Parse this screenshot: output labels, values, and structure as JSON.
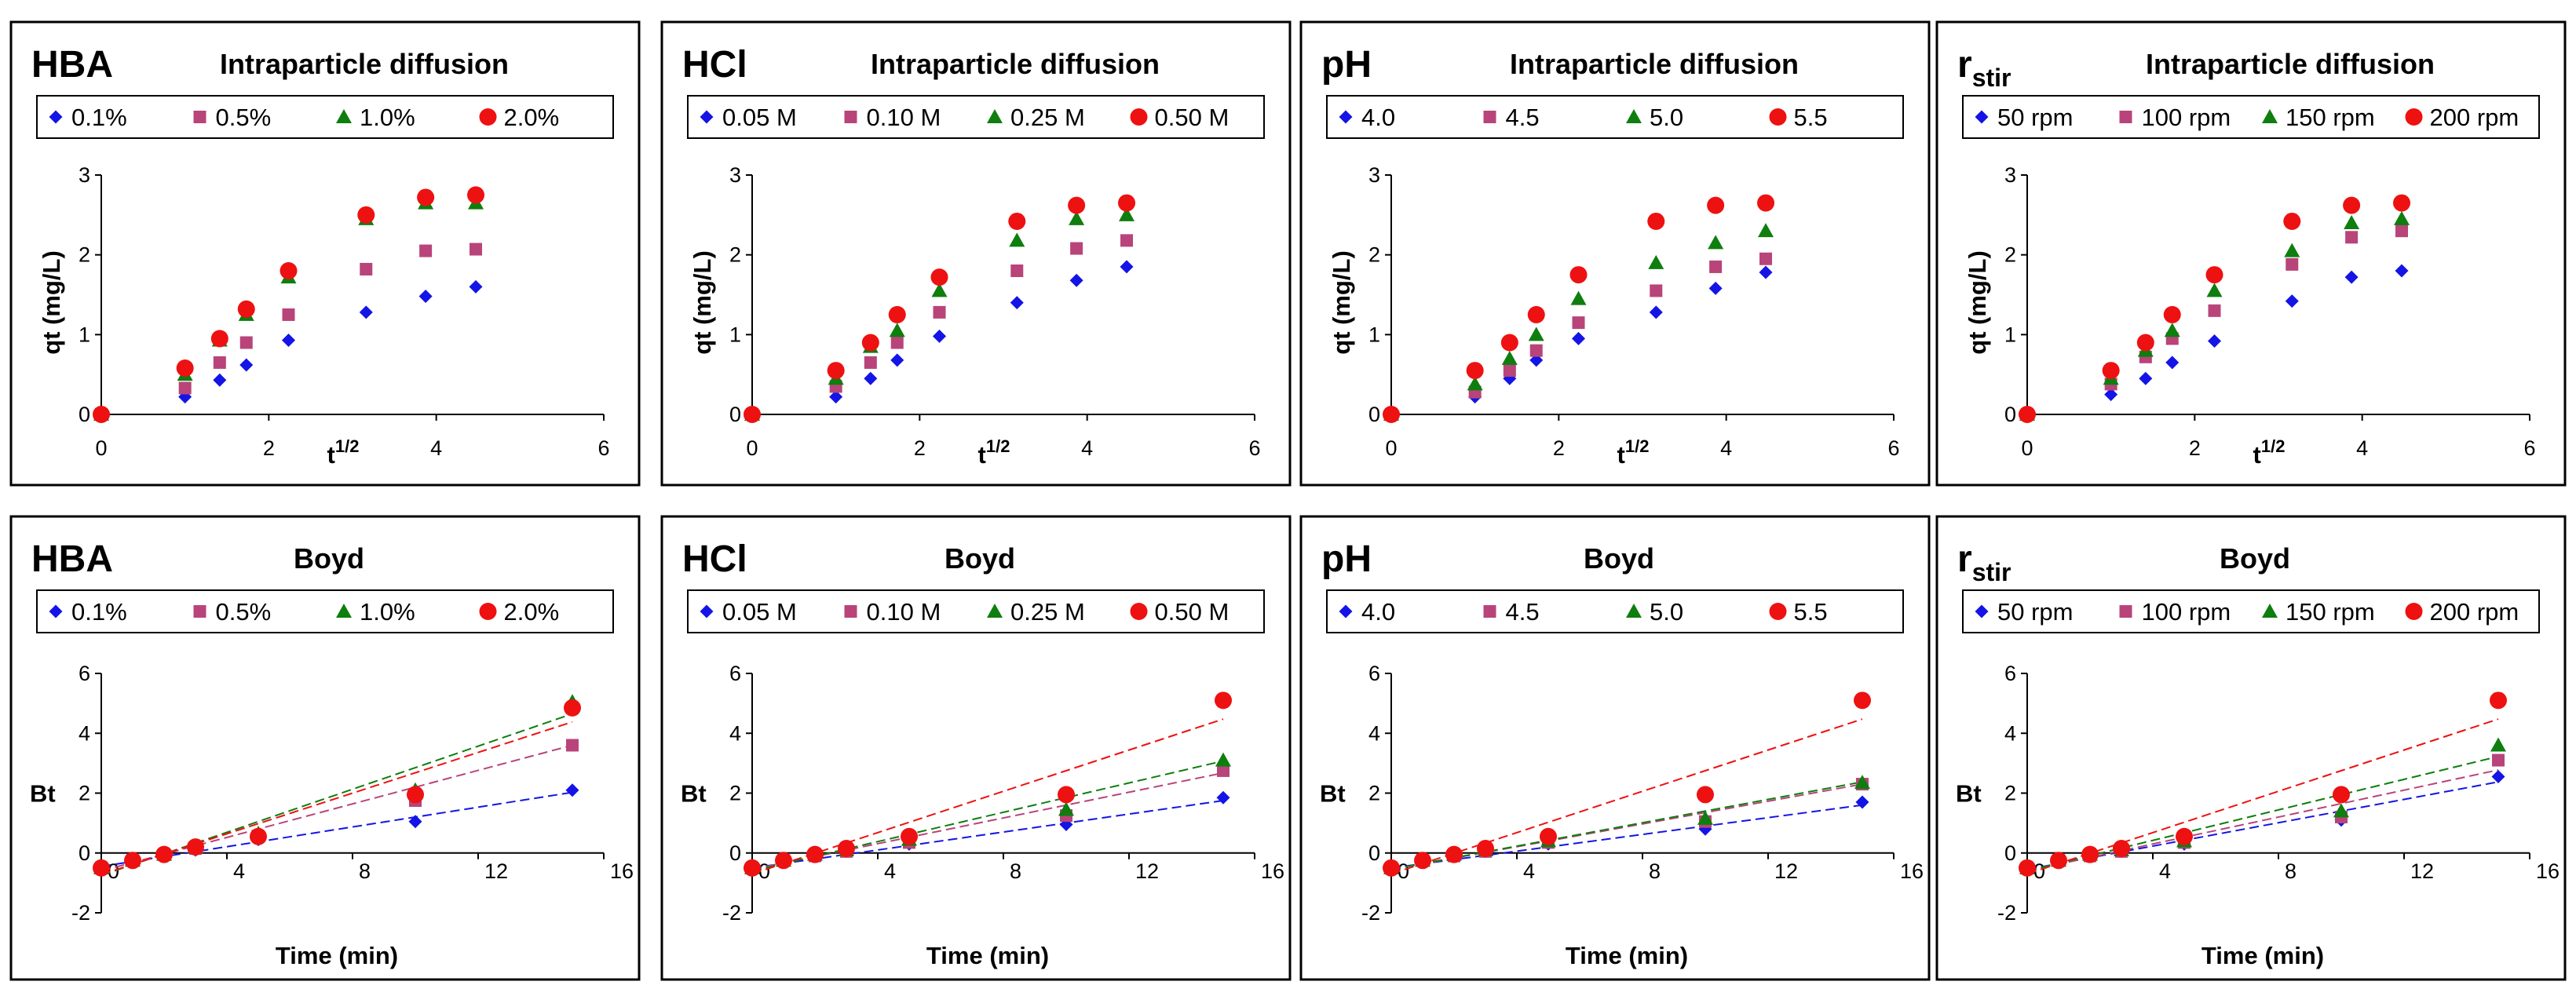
{
  "figure": {
    "colors": {
      "blue": "#1414e6",
      "magenta": "#b8447a",
      "green": "#0e7e0e",
      "red": "#ee1111"
    }
  },
  "chart_data": [
    {
      "type": "scatter",
      "row": "intraparticle",
      "id": "hba-intra",
      "panel_label": "HBA",
      "panel_label_sub": "",
      "title": "Intraparticle diffusion",
      "xlabel": "t",
      "xlabel_sup": "1/2",
      "ylabel": "qt (mg/L)",
      "xlim": [
        0,
        6
      ],
      "ylim": [
        0,
        3
      ],
      "xticks": [
        0,
        2,
        4,
        6
      ],
      "yticks": [
        0,
        1,
        2,
        3
      ],
      "x": [
        0,
        1.0,
        1.414,
        1.732,
        2.236,
        3.162,
        3.873,
        4.472
      ],
      "series": [
        {
          "name": "0.1%",
          "marker": "diamond",
          "color": "#1414e6",
          "values": [
            0,
            0.22,
            0.43,
            0.62,
            0.93,
            1.28,
            1.48,
            1.6
          ]
        },
        {
          "name": "0.5%",
          "marker": "square",
          "color": "#b8447a",
          "values": [
            0,
            0.33,
            0.65,
            0.9,
            1.25,
            1.82,
            2.05,
            2.07
          ]
        },
        {
          "name": "1.0%",
          "marker": "triangle",
          "color": "#0e7e0e",
          "values": [
            0,
            0.5,
            0.93,
            1.25,
            1.72,
            2.45,
            2.65,
            2.65
          ]
        },
        {
          "name": "2.0%",
          "marker": "circle",
          "color": "#ee1111",
          "values": [
            0,
            0.58,
            0.95,
            1.32,
            1.8,
            2.5,
            2.72,
            2.75
          ]
        }
      ]
    },
    {
      "type": "scatter",
      "row": "intraparticle",
      "id": "hcl-intra",
      "panel_label": "HCl",
      "panel_label_sub": "",
      "title": "Intraparticle diffusion",
      "xlabel": "t",
      "xlabel_sup": "1/2",
      "ylabel": "qt (mg/L)",
      "xlim": [
        0,
        6
      ],
      "ylim": [
        0,
        3
      ],
      "xticks": [
        0,
        2,
        4,
        6
      ],
      "yticks": [
        0,
        1,
        2,
        3
      ],
      "x": [
        0,
        1.0,
        1.414,
        1.732,
        2.236,
        3.162,
        3.873,
        4.472
      ],
      "series": [
        {
          "name": "0.05 M",
          "marker": "diamond",
          "color": "#1414e6",
          "values": [
            0,
            0.22,
            0.45,
            0.68,
            0.98,
            1.4,
            1.68,
            1.85
          ]
        },
        {
          "name": "0.10 M",
          "marker": "square",
          "color": "#b8447a",
          "values": [
            0,
            0.35,
            0.65,
            0.9,
            1.28,
            1.8,
            2.08,
            2.18
          ]
        },
        {
          "name": "0.25 M",
          "marker": "triangle",
          "color": "#0e7e0e",
          "values": [
            0,
            0.45,
            0.85,
            1.05,
            1.55,
            2.18,
            2.45,
            2.5
          ]
        },
        {
          "name": "0.50 M",
          "marker": "circle",
          "color": "#ee1111",
          "values": [
            0,
            0.55,
            0.9,
            1.25,
            1.72,
            2.42,
            2.62,
            2.65
          ]
        }
      ]
    },
    {
      "type": "scatter",
      "row": "intraparticle",
      "id": "ph-intra",
      "panel_label": "pH",
      "panel_label_sub": "",
      "title": "Intraparticle diffusion",
      "xlabel": "t",
      "xlabel_sup": "1/2",
      "ylabel": "qt (mg/L)",
      "xlim": [
        0,
        6
      ],
      "ylim": [
        0,
        3
      ],
      "xticks": [
        0,
        2,
        4,
        6
      ],
      "yticks": [
        0,
        1,
        2,
        3
      ],
      "x": [
        0,
        1.0,
        1.414,
        1.732,
        2.236,
        3.162,
        3.873,
        4.472
      ],
      "series": [
        {
          "name": "4.0",
          "marker": "diamond",
          "color": "#1414e6",
          "values": [
            0,
            0.22,
            0.45,
            0.68,
            0.95,
            1.28,
            1.58,
            1.78
          ]
        },
        {
          "name": "4.5",
          "marker": "square",
          "color": "#b8447a",
          "values": [
            0,
            0.28,
            0.55,
            0.8,
            1.15,
            1.55,
            1.85,
            1.95
          ]
        },
        {
          "name": "5.0",
          "marker": "triangle",
          "color": "#0e7e0e",
          "values": [
            0,
            0.38,
            0.7,
            1.0,
            1.45,
            1.9,
            2.15,
            2.3
          ]
        },
        {
          "name": "5.5",
          "marker": "circle",
          "color": "#ee1111",
          "values": [
            0,
            0.55,
            0.9,
            1.25,
            1.75,
            2.42,
            2.62,
            2.65
          ]
        }
      ]
    },
    {
      "type": "scatter",
      "row": "intraparticle",
      "id": "rstir-intra",
      "panel_label": "r",
      "panel_label_sub": "stir",
      "title": "Intraparticle diffusion",
      "xlabel": "t",
      "xlabel_sup": "1/2",
      "ylabel": "qt (mg/L)",
      "xlim": [
        0,
        6
      ],
      "ylim": [
        0,
        3
      ],
      "xticks": [
        0,
        2,
        4,
        6
      ],
      "yticks": [
        0,
        1,
        2,
        3
      ],
      "x": [
        0,
        1.0,
        1.414,
        1.732,
        2.236,
        3.162,
        3.873,
        4.472
      ],
      "series": [
        {
          "name": "50 rpm",
          "marker": "diamond",
          "color": "#1414e6",
          "values": [
            0,
            0.25,
            0.45,
            0.65,
            0.92,
            1.42,
            1.72,
            1.8
          ]
        },
        {
          "name": "100 rpm",
          "marker": "square",
          "color": "#b8447a",
          "values": [
            0,
            0.38,
            0.72,
            0.95,
            1.3,
            1.88,
            2.22,
            2.3
          ]
        },
        {
          "name": "150 rpm",
          "marker": "triangle",
          "color": "#0e7e0e",
          "values": [
            0,
            0.45,
            0.8,
            1.05,
            1.55,
            2.05,
            2.4,
            2.45
          ]
        },
        {
          "name": "200 rpm",
          "marker": "circle",
          "color": "#ee1111",
          "values": [
            0,
            0.55,
            0.9,
            1.25,
            1.75,
            2.42,
            2.62,
            2.65
          ]
        }
      ]
    },
    {
      "type": "scatter",
      "row": "boyd",
      "id": "hba-boyd",
      "panel_label": "HBA",
      "panel_label_sub": "",
      "title": "Boyd",
      "xlabel": "Time (min)",
      "xlabel_sup": "",
      "ylabel": "Bt",
      "xlim": [
        0,
        16
      ],
      "ylim": [
        -2,
        6
      ],
      "xticks": [
        0,
        4,
        8,
        12,
        16
      ],
      "yticks": [
        -2,
        0,
        2,
        4,
        6
      ],
      "x": [
        0,
        1,
        2,
        3,
        5,
        10,
        15
      ],
      "series": [
        {
          "name": "0.1%",
          "marker": "diamond",
          "color": "#1414e6",
          "values": [
            -0.5,
            -0.25,
            -0.1,
            0.1,
            0.45,
            1.05,
            2.1
          ],
          "fit": [
            -0.45,
            0.165
          ]
        },
        {
          "name": "0.5%",
          "marker": "square",
          "color": "#b8447a",
          "values": [
            -0.5,
            -0.25,
            -0.05,
            0.15,
            0.55,
            1.75,
            3.6
          ],
          "fit": [
            -0.6,
            0.28
          ]
        },
        {
          "name": "1.0%",
          "marker": "triangle",
          "color": "#0e7e0e",
          "values": [
            -0.5,
            -0.25,
            -0.05,
            0.2,
            0.65,
            2.1,
            5.05
          ],
          "fit": [
            -0.75,
            0.36
          ]
        },
        {
          "name": "2.0%",
          "marker": "circle",
          "color": "#ee1111",
          "values": [
            -0.5,
            -0.25,
            -0.05,
            0.2,
            0.55,
            1.95,
            4.85
          ],
          "fit": [
            -0.72,
            0.34
          ]
        }
      ]
    },
    {
      "type": "scatter",
      "row": "boyd",
      "id": "hcl-boyd",
      "panel_label": "HCl",
      "panel_label_sub": "",
      "title": "Boyd",
      "xlabel": "Time (min)",
      "xlabel_sup": "",
      "ylabel": "Bt",
      "xlim": [
        0,
        16
      ],
      "ylim": [
        -2,
        6
      ],
      "xticks": [
        0,
        4,
        8,
        12,
        16
      ],
      "yticks": [
        -2,
        0,
        2,
        4,
        6
      ],
      "x": [
        0,
        1,
        2,
        3,
        5,
        10,
        15
      ],
      "series": [
        {
          "name": "0.05 M",
          "marker": "diamond",
          "color": "#1414e6",
          "values": [
            -0.5,
            -0.25,
            -0.1,
            0.05,
            0.3,
            0.95,
            1.85
          ],
          "fit": [
            -0.5,
            0.15
          ]
        },
        {
          "name": "0.10 M",
          "marker": "square",
          "color": "#b8447a",
          "values": [
            -0.5,
            -0.25,
            -0.1,
            0.05,
            0.35,
            1.25,
            2.75
          ],
          "fit": [
            -0.55,
            0.215
          ]
        },
        {
          "name": "0.25 M",
          "marker": "triangle",
          "color": "#0e7e0e",
          "values": [
            -0.5,
            -0.25,
            -0.05,
            0.1,
            0.45,
            1.45,
            3.1
          ],
          "fit": [
            -0.6,
            0.245
          ]
        },
        {
          "name": "0.50 M",
          "marker": "circle",
          "color": "#ee1111",
          "values": [
            -0.5,
            -0.25,
            -0.05,
            0.15,
            0.55,
            1.95,
            5.1
          ],
          "fit": [
            -0.7,
            0.345
          ]
        }
      ]
    },
    {
      "type": "scatter",
      "row": "boyd",
      "id": "ph-boyd",
      "panel_label": "pH",
      "panel_label_sub": "",
      "title": "Boyd",
      "xlabel": "Time (min)",
      "xlabel_sup": "",
      "ylabel": "Bt",
      "xlim": [
        0,
        16
      ],
      "ylim": [
        -2,
        6
      ],
      "xticks": [
        0,
        4,
        8,
        12,
        16
      ],
      "yticks": [
        -2,
        0,
        2,
        4,
        6
      ],
      "x": [
        0,
        1,
        2,
        3,
        5,
        10,
        15
      ],
      "series": [
        {
          "name": "4.0",
          "marker": "diamond",
          "color": "#1414e6",
          "values": [
            -0.5,
            -0.25,
            -0.1,
            0.05,
            0.3,
            0.8,
            1.7
          ],
          "fit": [
            -0.5,
            0.14
          ]
        },
        {
          "name": "4.5",
          "marker": "square",
          "color": "#b8447a",
          "values": [
            -0.5,
            -0.25,
            -0.1,
            0.05,
            0.35,
            1.05,
            2.3
          ],
          "fit": [
            -0.55,
            0.19
          ]
        },
        {
          "name": "5.0",
          "marker": "triangle",
          "color": "#0e7e0e",
          "values": [
            -0.5,
            -0.25,
            -0.05,
            0.1,
            0.4,
            1.15,
            2.35
          ],
          "fit": [
            -0.55,
            0.195
          ]
        },
        {
          "name": "5.5",
          "marker": "circle",
          "color": "#ee1111",
          "values": [
            -0.5,
            -0.25,
            -0.05,
            0.15,
            0.55,
            1.95,
            5.1
          ],
          "fit": [
            -0.7,
            0.345
          ]
        }
      ]
    },
    {
      "type": "scatter",
      "row": "boyd",
      "id": "rstir-boyd",
      "panel_label": "r",
      "panel_label_sub": "stir",
      "title": "Boyd",
      "xlabel": "Time (min)",
      "xlabel_sup": "",
      "ylabel": "Bt",
      "xlim": [
        0,
        16
      ],
      "ylim": [
        -2,
        6
      ],
      "xticks": [
        0,
        4,
        8,
        12,
        16
      ],
      "yticks": [
        -2,
        0,
        2,
        4,
        6
      ],
      "x": [
        0,
        1,
        2,
        3,
        5,
        10,
        15
      ],
      "series": [
        {
          "name": "50 rpm",
          "marker": "diamond",
          "color": "#1414e6",
          "values": [
            -0.5,
            -0.25,
            -0.1,
            0.05,
            0.3,
            1.1,
            2.55
          ],
          "fit": [
            -0.55,
            0.195
          ]
        },
        {
          "name": "100 rpm",
          "marker": "square",
          "color": "#b8447a",
          "values": [
            -0.5,
            -0.25,
            -0.1,
            0.05,
            0.35,
            1.2,
            3.1
          ],
          "fit": [
            -0.6,
            0.225
          ]
        },
        {
          "name": "150 rpm",
          "marker": "triangle",
          "color": "#0e7e0e",
          "values": [
            -0.5,
            -0.25,
            -0.05,
            0.1,
            0.4,
            1.4,
            3.6
          ],
          "fit": [
            -0.6,
            0.255
          ]
        },
        {
          "name": "200 rpm",
          "marker": "circle",
          "color": "#ee1111",
          "values": [
            -0.5,
            -0.25,
            -0.05,
            0.15,
            0.55,
            1.95,
            5.1
          ],
          "fit": [
            -0.7,
            0.345
          ]
        }
      ]
    }
  ]
}
